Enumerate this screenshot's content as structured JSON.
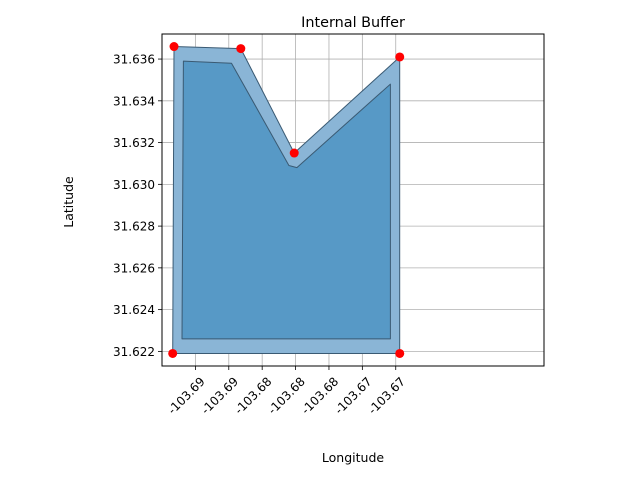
{
  "chart_data": {
    "type": "area",
    "title": "Internal Buffer",
    "xlabel": "Longitude",
    "ylabel": "Latitude",
    "xlim": [
      -103.6922,
      -103.6636
    ],
    "ylim": [
      31.6213,
      31.6372
    ],
    "grid": true,
    "x_ticks": [
      {
        "value": -103.6897,
        "label": "-103.69"
      },
      {
        "value": -103.6872,
        "label": "-103.69"
      },
      {
        "value": -103.6847,
        "label": "-103.68"
      },
      {
        "value": -103.6822,
        "label": "-103.68"
      },
      {
        "value": -103.6797,
        "label": "-103.68"
      },
      {
        "value": -103.6772,
        "label": "-103.67"
      },
      {
        "value": -103.6747,
        "label": "-103.67"
      }
    ],
    "y_ticks": [
      {
        "value": 31.622,
        "label": "31.622"
      },
      {
        "value": 31.624,
        "label": "31.624"
      },
      {
        "value": 31.626,
        "label": "31.626"
      },
      {
        "value": 31.628,
        "label": "31.628"
      },
      {
        "value": 31.63,
        "label": "31.630"
      },
      {
        "value": 31.632,
        "label": "31.632"
      },
      {
        "value": 31.634,
        "label": "31.634"
      },
      {
        "value": 31.636,
        "label": "31.636"
      }
    ],
    "series": [
      {
        "points": [
          [
            -103.6913,
            31.6366
          ],
          [
            -103.6863,
            31.6365
          ],
          [
            -103.6823,
            31.6315
          ],
          [
            -103.6744,
            31.6361
          ],
          [
            -103.6744,
            31.6219
          ],
          [
            -103.6914,
            31.6219
          ]
        ],
        "color": "#8ab5d6"
      },
      {
        "points": [
          [
            -103.6906,
            31.6359
          ],
          [
            -103.687,
            31.6358
          ],
          [
            -103.6827,
            31.6309
          ],
          [
            -103.6821,
            31.6308
          ],
          [
            -103.6751,
            31.6348
          ],
          [
            -103.6751,
            31.6226
          ],
          [
            -103.6907,
            31.6226
          ]
        ],
        "color": "#5799c6"
      },
      {
        "points": [
          [
            -103.6913,
            31.6366
          ],
          [
            -103.6863,
            31.6365
          ],
          [
            -103.6823,
            31.6315
          ],
          [
            -103.6744,
            31.6361
          ],
          [
            -103.6744,
            31.6219
          ],
          [
            -103.6914,
            31.6219
          ]
        ],
        "color": "#ff0000"
      }
    ],
    "colors": {
      "outer_fill": "#8ab5d6",
      "inner_fill": "#5799c6",
      "edge": "#3a5a73",
      "vertex": "#ff0000",
      "grid": "#b0b0b0"
    }
  }
}
